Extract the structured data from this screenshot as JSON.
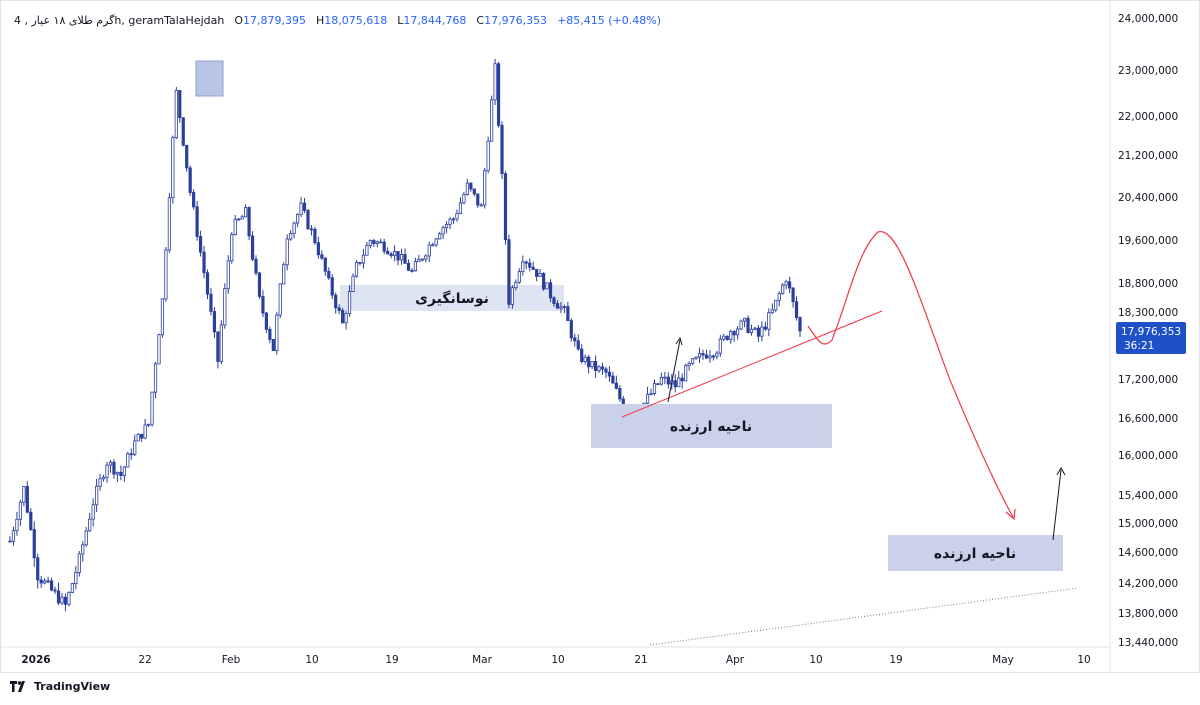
{
  "header": {
    "symbol": "گرم طلای ۱۸ عیار , 4h, geramTalaHejdah",
    "open_label": "O",
    "open_value": "17,879,395",
    "high_label": "H",
    "high_value": "18,075,618",
    "low_label": "L",
    "low_value": "17,844,768",
    "close_label": "C",
    "close_value": "17,976,353",
    "change": "+85,415 (+0.48%)"
  },
  "price_badge": {
    "value": "17,976,353",
    "countdown": "36:21",
    "color": "#1e50c8"
  },
  "branding": {
    "name": "TradingView"
  },
  "annotations": {
    "range_zone": "نوسانگیری",
    "value_zone_1": "ناحیه ارزنده",
    "value_zone_2": "ناحیه ارزنده"
  },
  "chart_data": {
    "type": "candlestick",
    "y_ticks": [
      "24,000,000",
      "23,000,000",
      "22,000,000",
      "21,200,000",
      "20,400,000",
      "19,600,000",
      "18,800,000",
      "18,300,000",
      "17,200,000",
      "16,600,000",
      "16,000,000",
      "15,400,000",
      "15,000,000",
      "14,600,000",
      "14,200,000",
      "13,800,000",
      "13,440,000"
    ],
    "x_ticks": [
      "2026",
      "22",
      "Feb",
      "10",
      "19",
      "Mar",
      "10",
      "21",
      "Apr",
      "10",
      "19",
      "May",
      "10"
    ],
    "x_tick_bold": [
      true,
      false,
      false,
      false,
      false,
      false,
      false,
      false,
      false,
      false,
      false,
      false,
      false
    ],
    "series_color": "#2a3f9c",
    "ylim": [
      13440000,
      24000000
    ],
    "close": [
      14750000,
      15500000,
      14300000,
      14100000,
      13900000,
      14500000,
      15300000,
      15900000,
      15700000,
      16200000,
      16500000,
      18500000,
      22500000,
      20500000,
      19000000,
      17500000,
      19800000,
      20100000,
      18500000,
      17700000,
      19700000,
      20200000,
      19600000,
      18800000,
      18100000,
      19100000,
      19600000,
      19500000,
      19300000,
      19000000,
      19400000,
      19800000,
      20000000,
      20600000,
      20200000,
      23000000,
      18500000,
      19300000,
      19000000,
      18600000,
      18300000,
      17600000,
      17400000,
      17300000,
      16900000,
      16600000,
      16900000,
      17200000,
      17100000,
      17400000,
      17600000,
      17700000,
      18000000,
      18100000,
      17900000,
      18300000,
      18900000,
      17976353
    ]
  }
}
